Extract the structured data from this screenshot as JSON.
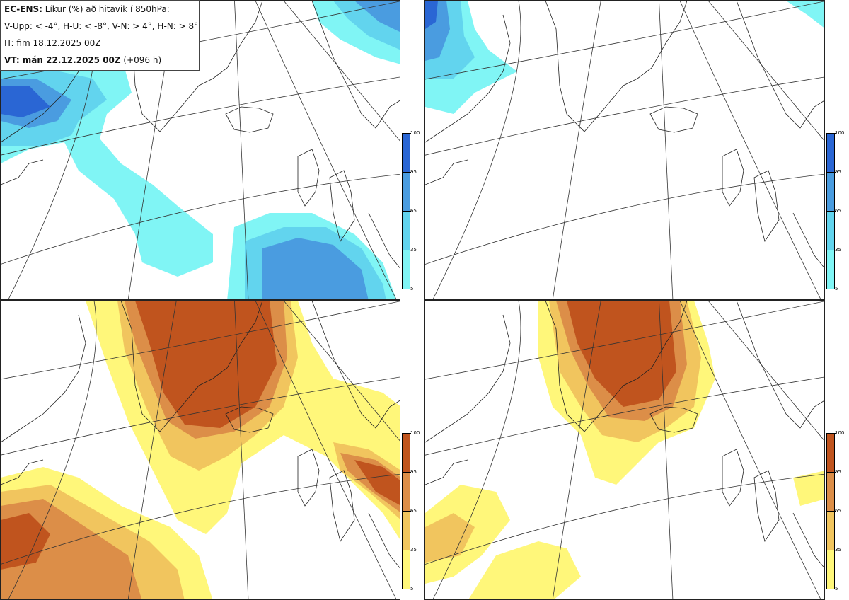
{
  "header": {
    "title_bold": "EC-ENS:",
    "title_rest": " Líkur (%) að hitavik í 850hPa:",
    "legend_line": "V-Upp: < -4°, H-U: < -8°, V-N: > 4°, H-N: > 8°",
    "init_time": "IT: fim 18.12.2025 00Z",
    "valid_bold": "VT: mán 22.12.2025 00Z",
    "valid_rest": " (+096 h)"
  },
  "colorbar_labels": [
    "100",
    "95",
    "65",
    "35",
    "5"
  ],
  "colors": {
    "cold": [
      "#80f5f5",
      "#62d4ee",
      "#4a9ce0",
      "#2a66d4"
    ],
    "warm": [
      "#fff77a",
      "#f1c55e",
      "#dc8e48",
      "#c0541e"
    ],
    "coast": "#222222",
    "grid": "#333333"
  },
  "panels": [
    {
      "id": "tl",
      "name": "V-Upp",
      "desc": "Probability anomaly < -4°"
    },
    {
      "id": "tr",
      "name": "H-U",
      "desc": "Probability anomaly < -8°"
    },
    {
      "id": "bl",
      "name": "V-N",
      "desc": "Probability anomaly > 4°"
    },
    {
      "id": "br",
      "name": "H-N",
      "desc": "Probability anomaly > 8°"
    }
  ]
}
